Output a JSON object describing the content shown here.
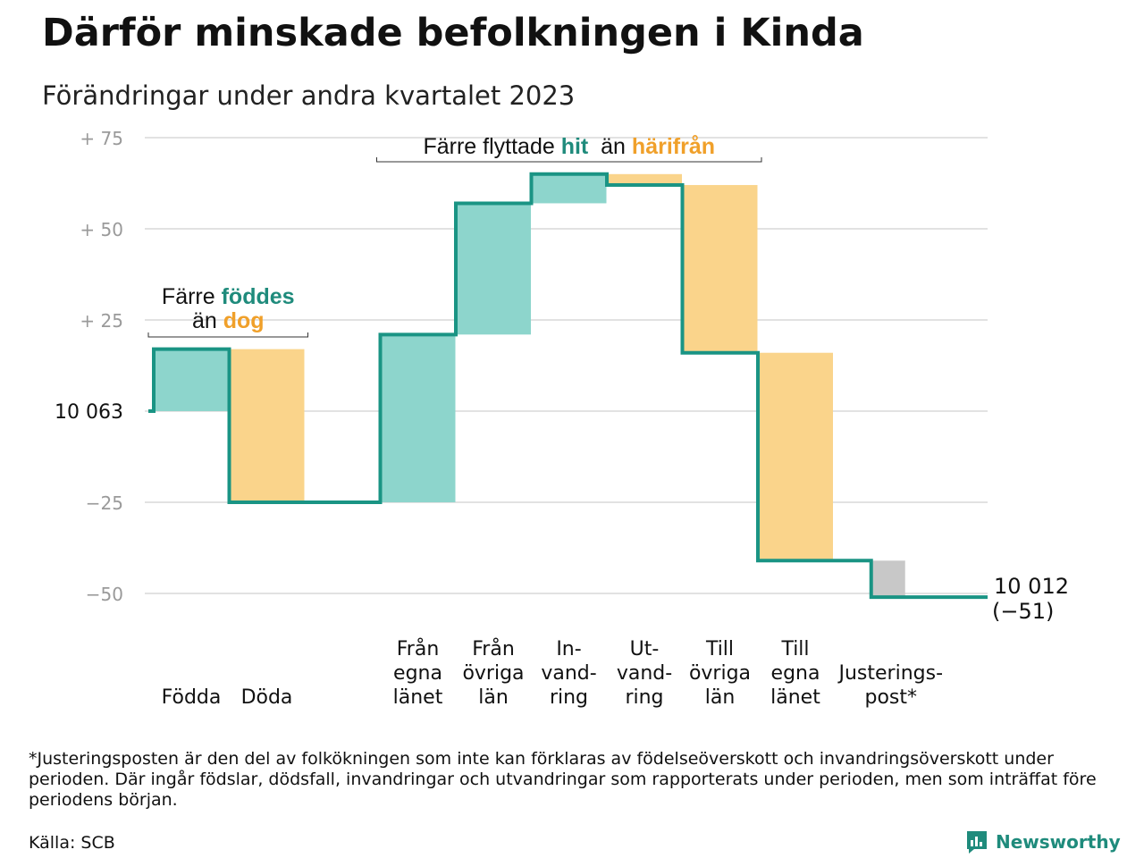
{
  "title": "Därför minskade befolkningen i Kinda",
  "subtitle": "Förändringar under andra kvartalet 2023",
  "colors": {
    "line": "#1a9484",
    "increase": "#8dd5cc",
    "decrease": "#fad48b",
    "adjustment": "#c8c8c8",
    "teal_text": "#1f8b7c",
    "orange_text": "#f0a02a",
    "grid": "#e2e2e2",
    "tick": "#9a9a9a"
  },
  "chart_data": {
    "type": "waterfall",
    "start_value": 10063,
    "start_label": "10  063",
    "end_label": "10 012",
    "end_change": "(−51)",
    "y_ticks": [
      {
        "value": 75,
        "label": "+  75"
      },
      {
        "value": 50,
        "label": "+  50"
      },
      {
        "value": 25,
        "label": "+  25"
      },
      {
        "value": 0,
        "label": "10  063"
      },
      {
        "value": -25,
        "label": "−25"
      },
      {
        "value": -50,
        "label": "−50"
      }
    ],
    "ylim": [
      -55,
      75
    ],
    "grid": true,
    "steps": [
      {
        "label": [
          "Födda"
        ],
        "value": 17,
        "kind": "increase",
        "slot": 0
      },
      {
        "label": [
          "Döda"
        ],
        "value": -42,
        "kind": "decrease",
        "slot": 1
      },
      {
        "label": [
          "Från",
          "egna",
          "länet"
        ],
        "value": 46,
        "kind": "increase",
        "slot": 3
      },
      {
        "label": [
          "Från",
          "övriga",
          "län"
        ],
        "value": 36,
        "kind": "increase",
        "slot": 4
      },
      {
        "label": [
          "In-",
          "vand-",
          "ring"
        ],
        "value": 8,
        "kind": "increase",
        "slot": 5
      },
      {
        "label": [
          "Ut-",
          "vand-",
          "ring"
        ],
        "value": -3,
        "kind": "decrease",
        "slot": 6
      },
      {
        "label": [
          "Till",
          "övriga",
          "län"
        ],
        "value": -46,
        "kind": "decrease",
        "slot": 7
      },
      {
        "label": [
          "Till",
          "egna",
          "länet"
        ],
        "value": -57,
        "kind": "decrease",
        "slot": 8
      },
      {
        "label": [
          "Justerings-",
          "post*"
        ],
        "value": -10,
        "kind": "adjustment",
        "slot": 9.5
      }
    ],
    "annotations": [
      {
        "parts": [
          {
            "text": "Färre ",
            "style": "plain"
          },
          {
            "text": "föddes",
            "style": "teal"
          }
        ],
        "parts2": [
          {
            "text": "än ",
            "style": "plain"
          },
          {
            "text": "dog",
            "style": "orange"
          }
        ],
        "span": [
          0,
          1
        ]
      },
      {
        "parts": [
          {
            "text": "Färre flyttade ",
            "style": "plain"
          },
          {
            "text": "hit",
            "style": "teal"
          },
          {
            "text": "  än ",
            "style": "plain"
          },
          {
            "text": "härifrån",
            "style": "orange"
          }
        ],
        "span": [
          3,
          8
        ]
      }
    ]
  },
  "footnote": "*Justeringsposten är den del av folkökningen som inte kan förklaras av födelseöverskott och invandringsöverskott under perioden. Där ingår födslar, dödsfall, invandringar och utvandringar som rapporterats under perioden, men som inträffat före periodens början.",
  "source": "Källa: SCB",
  "brand": {
    "name": "Newsworthy",
    "icon": "newsworthy-logo-icon"
  }
}
